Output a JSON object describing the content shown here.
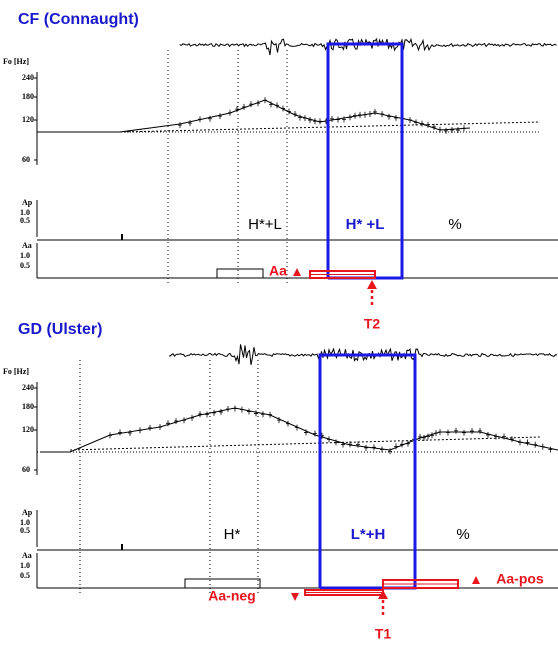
{
  "panels": [
    {
      "title": "CF (Connaught)",
      "f0_axis_label": "Fo [Hz]",
      "f0_ticks": [
        "240",
        "180",
        "120",
        "60"
      ],
      "ap_label": "Ap",
      "ap_ticks": [
        "1.0",
        "0.5"
      ],
      "aa_label": "Aa",
      "aa_ticks": [
        "1.0",
        "0.5"
      ],
      "tones": [
        "H*+L",
        "H* +L",
        "%"
      ],
      "accent_labels": [
        "Aa"
      ],
      "timing_label": "T2"
    },
    {
      "title": "GD (Ulster)",
      "f0_axis_label": "Fo [Hz]",
      "f0_ticks": [
        "240",
        "180",
        "120",
        "60"
      ],
      "ap_label": "Ap",
      "ap_ticks": [
        "1.0",
        "0.5"
      ],
      "aa_label": "Aa",
      "aa_ticks": [
        "1.0",
        "0.5"
      ],
      "tones": [
        "H*",
        "L*+H",
        "%"
      ],
      "accent_labels": [
        "Aa-neg",
        "Aa-pos"
      ],
      "timing_label": "T1"
    }
  ]
}
